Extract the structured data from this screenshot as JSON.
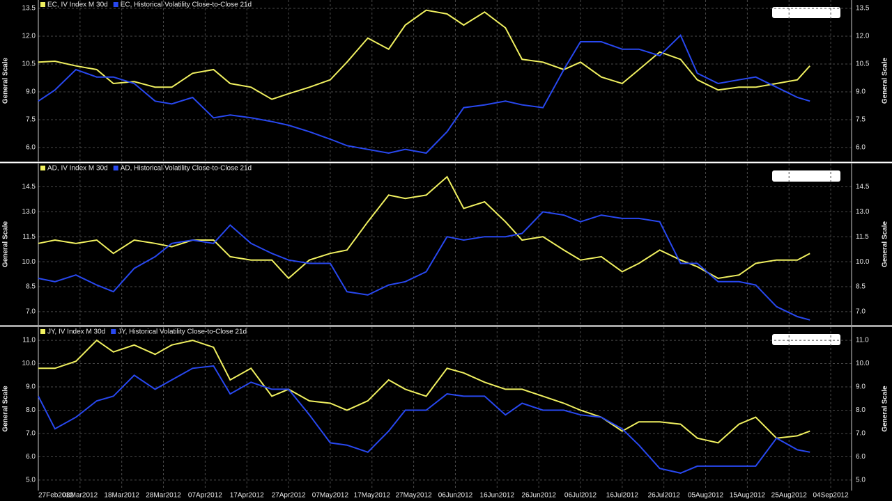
{
  "chart_data": [
    {
      "type": "line",
      "ylabel": "General Scale",
      "xlim": [
        "2012-02-27",
        "2012-09-09"
      ],
      "ylim": [
        5.25,
        13.95
      ],
      "yticks": [
        {
          "value": 6,
          "label": "6.0"
        },
        7.5,
        {
          "value": 9,
          "label": "9.0"
        },
        10.5,
        {
          "value": 12,
          "label": "12.0"
        },
        13.5
      ],
      "grid": true,
      "x": [
        "2012-02-27",
        "2012-03-02",
        "2012-03-07",
        "2012-03-12",
        "2012-03-16",
        "2012-03-21",
        "2012-03-26",
        "2012-03-30",
        "2012-04-04",
        "2012-04-09",
        "2012-04-13",
        "2012-04-18",
        "2012-04-23",
        "2012-04-27",
        "2012-05-02",
        "2012-05-07",
        "2012-05-11",
        "2012-05-16",
        "2012-05-21",
        "2012-05-25",
        "2012-05-30",
        "2012-06-04",
        "2012-06-08",
        "2012-06-13",
        "2012-06-18",
        "2012-06-22",
        "2012-06-27",
        "2012-07-02",
        "2012-07-06",
        "2012-07-11",
        "2012-07-16",
        "2012-07-20",
        "2012-07-25",
        "2012-07-30",
        "2012-08-03",
        "2012-08-08",
        "2012-08-13",
        "2012-08-17",
        "2012-08-22",
        "2012-08-27",
        "2012-08-30"
      ],
      "series": [
        {
          "name": "EC, IV Index M 30d",
          "color": "#f0f060",
          "values": [
            10.6,
            10.65,
            10.4,
            10.2,
            9.45,
            9.55,
            9.25,
            9.25,
            10.0,
            10.2,
            9.45,
            9.25,
            8.6,
            8.9,
            9.25,
            9.65,
            10.6,
            11.9,
            11.3,
            12.6,
            13.4,
            13.2,
            12.6,
            13.3,
            12.45,
            10.75,
            10.6,
            10.2,
            10.6,
            9.8,
            9.45,
            10.2,
            11.15,
            10.75,
            9.65,
            9.1,
            9.25,
            9.25,
            9.45,
            9.65,
            10.4
          ]
        },
        {
          "name": "EC, Historical Volatility Close-to-Close 21d",
          "color": "#2848f0",
          "values": [
            8.5,
            9.1,
            10.2,
            9.8,
            9.8,
            9.45,
            8.5,
            8.35,
            8.7,
            7.6,
            7.75,
            7.6,
            7.4,
            7.2,
            6.85,
            6.45,
            6.1,
            5.9,
            5.7,
            5.9,
            5.7,
            6.85,
            8.15,
            8.3,
            8.5,
            8.3,
            8.15,
            10.2,
            11.7,
            11.7,
            11.3,
            11.3,
            10.95,
            12.05,
            10.0,
            9.45,
            9.65,
            9.8,
            9.25,
            8.7,
            8.5
          ]
        }
      ]
    },
    {
      "type": "line",
      "ylabel": "General Scale",
      "xlim": [
        "2012-02-27",
        "2012-09-09"
      ],
      "ylim": [
        6.2,
        15.9
      ],
      "yticks": [
        {
          "value": 7,
          "label": "7.0"
        },
        8.5,
        {
          "value": 10,
          "label": "10.0"
        },
        11.5,
        {
          "value": 13,
          "label": "13.0"
        },
        14.5
      ],
      "grid": true,
      "x": [
        "2012-02-27",
        "2012-03-02",
        "2012-03-07",
        "2012-03-12",
        "2012-03-16",
        "2012-03-21",
        "2012-03-26",
        "2012-03-30",
        "2012-04-04",
        "2012-04-09",
        "2012-04-13",
        "2012-04-18",
        "2012-04-23",
        "2012-04-27",
        "2012-05-02",
        "2012-05-07",
        "2012-05-11",
        "2012-05-16",
        "2012-05-21",
        "2012-05-25",
        "2012-05-30",
        "2012-06-04",
        "2012-06-08",
        "2012-06-13",
        "2012-06-18",
        "2012-06-22",
        "2012-06-27",
        "2012-07-02",
        "2012-07-06",
        "2012-07-11",
        "2012-07-16",
        "2012-07-20",
        "2012-07-25",
        "2012-07-30",
        "2012-08-03",
        "2012-08-08",
        "2012-08-13",
        "2012-08-17",
        "2012-08-22",
        "2012-08-27",
        "2012-08-30"
      ],
      "series": [
        {
          "name": "AD, IV Index M 30d",
          "color": "#f0f060",
          "values": [
            11.1,
            11.3,
            11.1,
            11.3,
            10.5,
            11.3,
            11.1,
            10.9,
            11.3,
            11.3,
            10.3,
            10.1,
            10.1,
            9.0,
            10.1,
            10.5,
            10.7,
            12.4,
            14.0,
            13.8,
            14.0,
            15.1,
            13.2,
            13.6,
            12.4,
            11.3,
            11.5,
            10.7,
            10.1,
            10.3,
            9.4,
            9.9,
            10.7,
            10.1,
            9.7,
            9.0,
            9.2,
            9.9,
            10.1,
            10.1,
            10.5
          ]
        },
        {
          "name": "AD, Historical Volatility Close-to-Close 21d",
          "color": "#2848f0",
          "values": [
            9.0,
            8.8,
            9.2,
            8.6,
            8.2,
            9.6,
            10.3,
            11.1,
            11.3,
            11.1,
            12.2,
            11.1,
            10.5,
            10.1,
            9.9,
            9.9,
            8.2,
            8.0,
            8.6,
            8.8,
            9.4,
            11.5,
            11.3,
            11.5,
            11.5,
            11.7,
            13.0,
            12.8,
            12.4,
            12.8,
            12.6,
            12.6,
            12.4,
            9.9,
            9.9,
            8.8,
            8.8,
            8.6,
            7.3,
            6.7,
            6.5
          ]
        }
      ]
    },
    {
      "type": "line",
      "ylabel": "General Scale",
      "xlim": [
        "2012-02-27",
        "2012-09-09"
      ],
      "ylim": [
        4.55,
        11.57
      ],
      "yticks": [
        {
          "value": 5,
          "label": "5.0"
        },
        {
          "value": 6,
          "label": "6.0"
        },
        {
          "value": 7,
          "label": "7.0"
        },
        {
          "value": 8,
          "label": "8.0"
        },
        {
          "value": 9,
          "label": "9.0"
        },
        {
          "value": 10,
          "label": "10.0"
        },
        {
          "value": 11,
          "label": "11.0"
        }
      ],
      "xticks": [
        {
          "value": "2012-02-27",
          "label": "27Feb2012"
        },
        {
          "value": "2012-03-08",
          "label": "08Mar2012"
        },
        {
          "value": "2012-03-18",
          "label": "18Mar2012"
        },
        {
          "value": "2012-03-28",
          "label": "28Mar2012"
        },
        {
          "value": "2012-04-07",
          "label": "07Apr2012"
        },
        {
          "value": "2012-04-17",
          "label": "17Apr2012"
        },
        {
          "value": "2012-04-27",
          "label": "27Apr2012"
        },
        {
          "value": "2012-05-07",
          "label": "07May2012"
        },
        {
          "value": "2012-05-17",
          "label": "17May2012"
        },
        {
          "value": "2012-05-27",
          "label": "27May2012"
        },
        {
          "value": "2012-06-06",
          "label": "06Jun2012"
        },
        {
          "value": "2012-06-16",
          "label": "16Jun2012"
        },
        {
          "value": "2012-06-26",
          "label": "26Jun2012"
        },
        {
          "value": "2012-07-06",
          "label": "06Jul2012"
        },
        {
          "value": "2012-07-16",
          "label": "16Jul2012"
        },
        {
          "value": "2012-07-26",
          "label": "26Jul2012"
        },
        {
          "value": "2012-08-05",
          "label": "05Aug2012"
        },
        {
          "value": "2012-08-15",
          "label": "15Aug2012"
        },
        {
          "value": "2012-08-25",
          "label": "25Aug2012"
        },
        {
          "value": "2012-09-04",
          "label": "04Sep2012"
        }
      ],
      "grid": true,
      "x": [
        "2012-02-27",
        "2012-03-02",
        "2012-03-07",
        "2012-03-12",
        "2012-03-16",
        "2012-03-21",
        "2012-03-26",
        "2012-03-30",
        "2012-04-04",
        "2012-04-09",
        "2012-04-13",
        "2012-04-18",
        "2012-04-23",
        "2012-04-27",
        "2012-05-02",
        "2012-05-07",
        "2012-05-11",
        "2012-05-16",
        "2012-05-21",
        "2012-05-25",
        "2012-05-30",
        "2012-06-04",
        "2012-06-08",
        "2012-06-13",
        "2012-06-18",
        "2012-06-22",
        "2012-06-27",
        "2012-07-02",
        "2012-07-06",
        "2012-07-11",
        "2012-07-16",
        "2012-07-20",
        "2012-07-25",
        "2012-07-30",
        "2012-08-03",
        "2012-08-08",
        "2012-08-13",
        "2012-08-17",
        "2012-08-22",
        "2012-08-27",
        "2012-08-30"
      ],
      "series": [
        {
          "name": "JY, IV Index M 30d",
          "color": "#f0f060",
          "values": [
            9.8,
            9.8,
            10.1,
            11.0,
            10.5,
            10.8,
            10.4,
            10.8,
            11.0,
            10.7,
            9.3,
            9.8,
            8.6,
            8.9,
            8.4,
            8.3,
            8.0,
            8.4,
            9.3,
            8.9,
            8.6,
            9.8,
            9.6,
            9.2,
            8.9,
            8.9,
            8.6,
            8.3,
            8.0,
            7.7,
            7.1,
            7.5,
            7.5,
            7.4,
            6.8,
            6.6,
            7.4,
            7.7,
            6.8,
            6.9,
            7.1
          ]
        },
        {
          "name": "JY, Historical Volatility Close-to-Close 21d",
          "color": "#2848f0",
          "values": [
            8.6,
            7.2,
            7.7,
            8.4,
            8.6,
            9.5,
            8.9,
            9.3,
            9.8,
            9.9,
            8.7,
            9.2,
            8.9,
            8.9,
            7.8,
            6.6,
            6.5,
            6.2,
            7.1,
            8.0,
            8.0,
            8.7,
            8.6,
            8.6,
            7.8,
            8.3,
            8.0,
            8.0,
            7.8,
            7.7,
            7.2,
            6.5,
            5.5,
            5.3,
            5.6,
            5.6,
            5.6,
            5.6,
            6.8,
            6.3,
            6.2
          ]
        }
      ]
    }
  ]
}
